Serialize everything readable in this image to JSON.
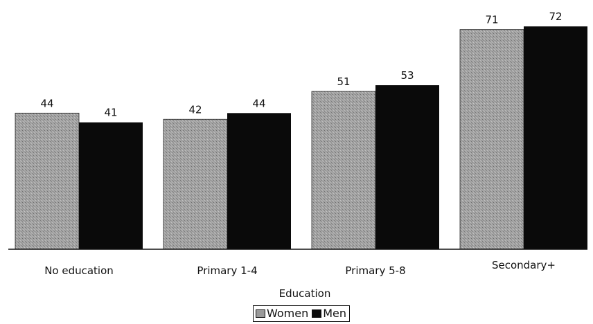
{
  "chart_data": {
    "type": "bar",
    "categories": [
      "No education",
      "Primary 1-4",
      "Primary 5-8",
      "Secondary+"
    ],
    "series": [
      {
        "name": "Women",
        "values": [
          44,
          42,
          51,
          71
        ],
        "color": "#9a9a9a"
      },
      {
        "name": "Men",
        "values": [
          41,
          44,
          53,
          72
        ],
        "color": "#0a0a0a"
      }
    ],
    "title": "",
    "xlabel": "Education",
    "ylabel": "",
    "ylim": [
      0,
      80
    ],
    "grid": false,
    "legend_position": "bottom-center"
  }
}
